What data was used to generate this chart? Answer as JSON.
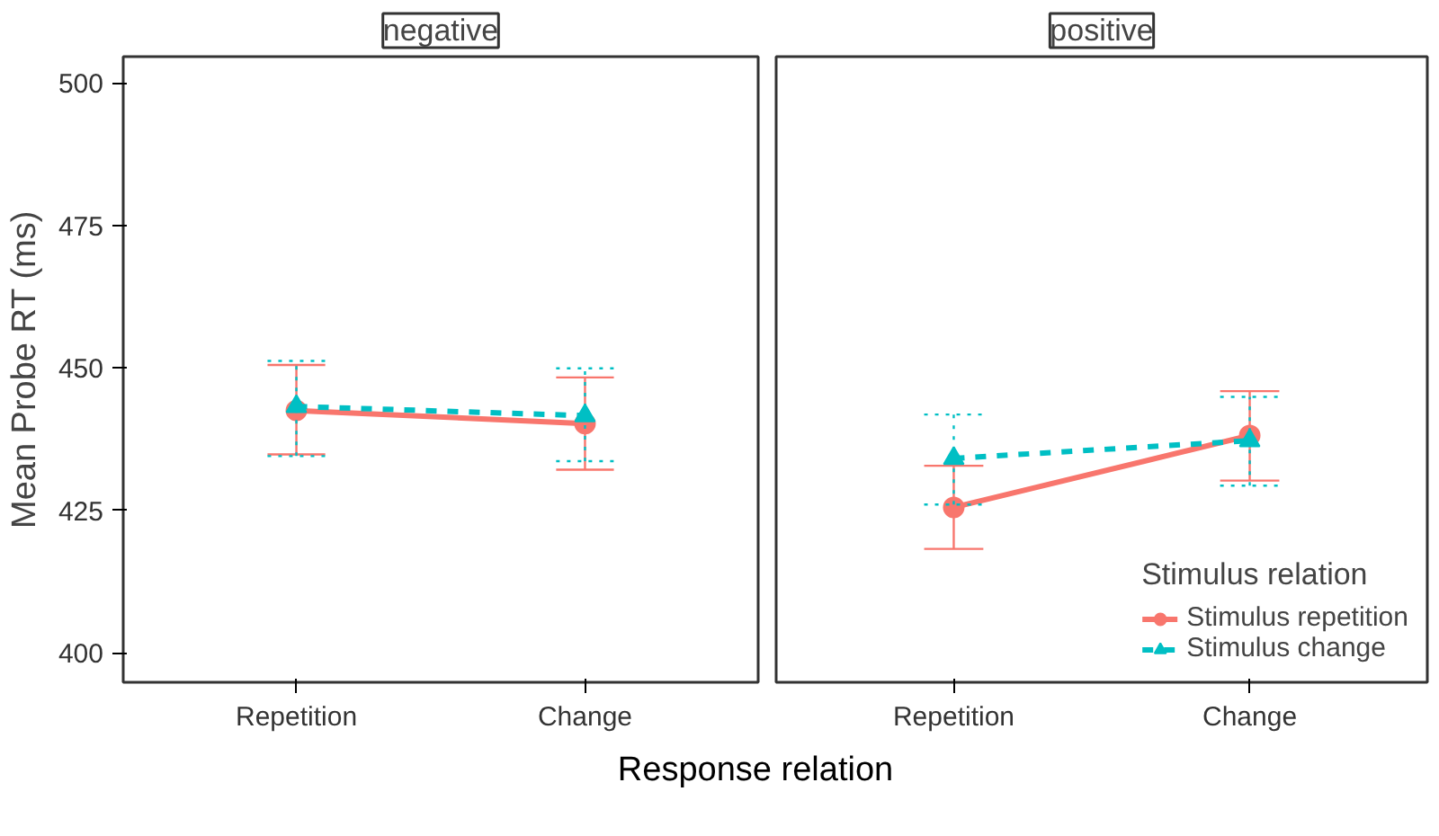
{
  "chart_data": [
    {
      "type": "line",
      "title": "negative",
      "xlabel": "Response relation",
      "ylabel": "Mean Probe RT (ms)",
      "categories": [
        "Repetition",
        "Change"
      ],
      "ylim": [
        394.8,
        504.6
      ],
      "yticks": [
        400,
        425,
        450,
        475,
        500
      ],
      "grid": false,
      "legend": false,
      "series": [
        {
          "color": "#f8766d",
          "marker": "circle",
          "line_style": "solid",
          "values": [
            442.5,
            440.2
          ],
          "errors": [
            [
              434.8,
              450.5
            ],
            [
              432.1,
              448.3
            ]
          ]
        },
        {
          "color": "#00bfc4",
          "marker": "triangle",
          "line_style": "dashed",
          "values": [
            443.2,
            441.6
          ],
          "errors": [
            [
              434.5,
              451.2
            ],
            [
              433.6,
              449.9
            ]
          ]
        }
      ]
    },
    {
      "type": "line",
      "title": "positive",
      "categories": [
        "Repetition",
        "Change"
      ],
      "ylim": [
        394.8,
        504.6
      ],
      "yticks": [
        400,
        425,
        450,
        475,
        500
      ],
      "tick_labels": "x",
      "grid": false,
      "legend": "bottom right",
      "legend_title": "Stimulus relation",
      "series": [
        {
          "name": "Stimulus repetition",
          "color": "#f8766d",
          "marker": "circle",
          "line_style": "solid",
          "values": [
            425.5,
            438.1
          ],
          "errors": [
            [
              418.2,
              432.8
            ],
            [
              430.2,
              445.9
            ]
          ]
        },
        {
          "name": "Stimulus change",
          "color": "#00bfc4",
          "marker": "triangle",
          "line_style": "dashed",
          "values": [
            434.1,
            437.2
          ],
          "errors": [
            [
              426.0,
              441.8
            ],
            [
              429.3,
              444.9
            ]
          ]
        }
      ]
    }
  ]
}
